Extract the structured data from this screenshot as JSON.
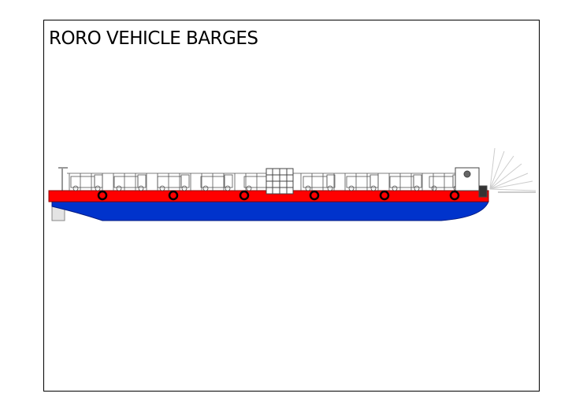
{
  "slide": {
    "title": "RORO VEHICLE BARGES",
    "image": "roro-vehicle-barge-side-profile",
    "colors": {
      "deck_band": "#ff0000",
      "hull": "#0033cc",
      "outline": "#000000"
    }
  }
}
